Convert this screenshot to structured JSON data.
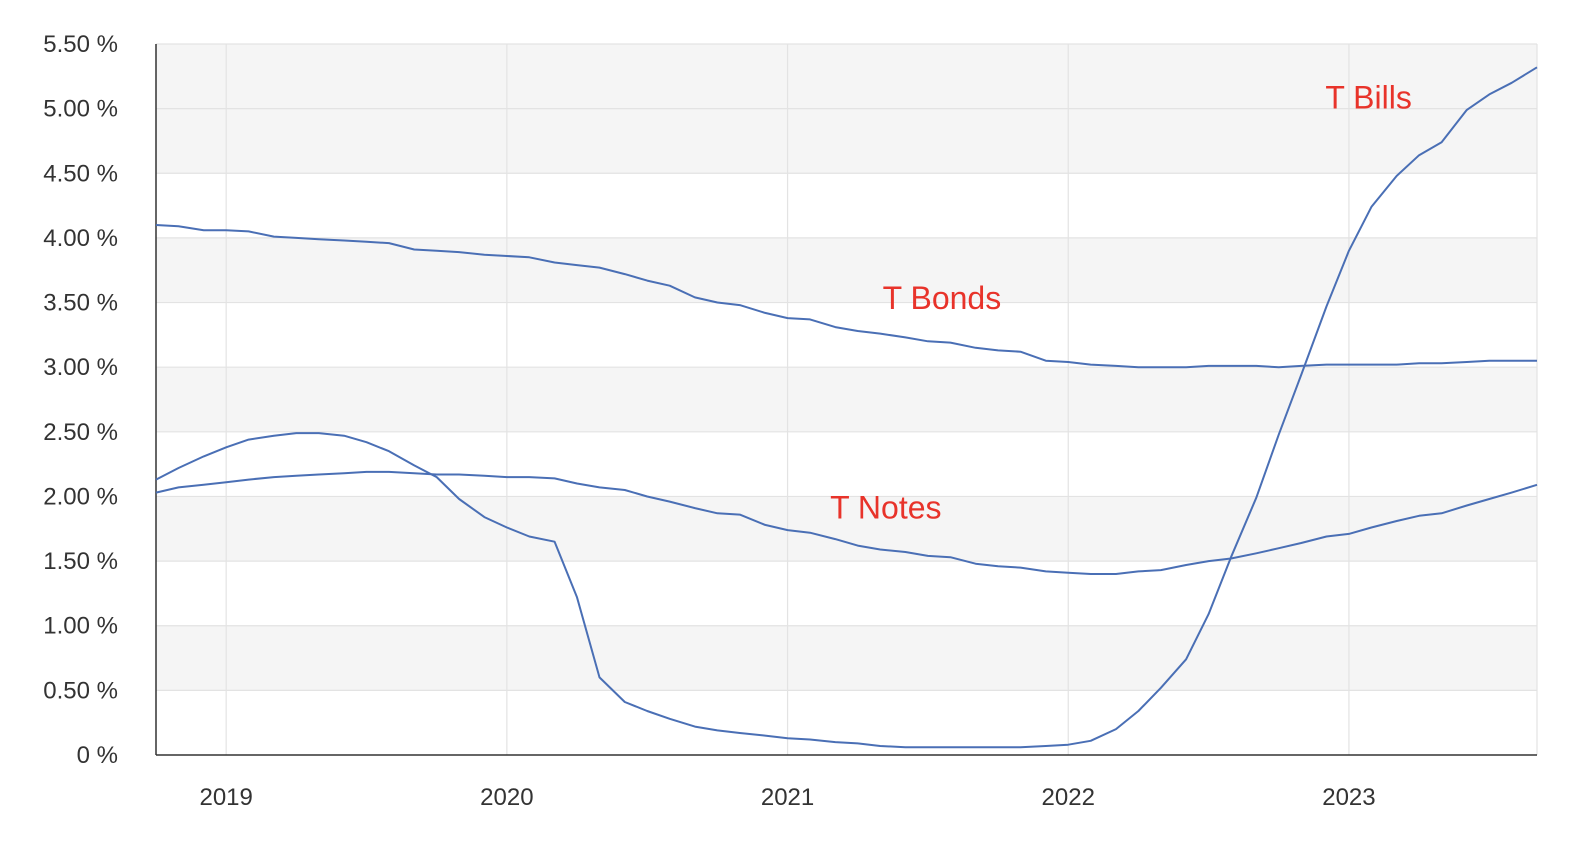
{
  "chart_data": {
    "type": "line",
    "x_unit": "year",
    "xlim": [
      2018.75,
      2023.67
    ],
    "ylim": [
      0,
      5.5
    ],
    "y_tick_values": [
      0,
      0.5,
      1.0,
      1.5,
      2.0,
      2.5,
      3.0,
      3.5,
      4.0,
      4.5,
      5.0,
      5.5
    ],
    "y_tick_labels": [
      "0 %",
      "0.50 %",
      "1.00 %",
      "1.50 %",
      "2.00 %",
      "2.50 %",
      "3.00 %",
      "3.50 %",
      "4.00 %",
      "4.50 %",
      "5.00 %",
      "5.50 %"
    ],
    "x_tick_values": [
      2019,
      2020,
      2021,
      2022,
      2023
    ],
    "x_tick_labels": [
      "2019",
      "2020",
      "2021",
      "2022",
      "2023"
    ],
    "grid": true,
    "banded_background": true,
    "colors": {
      "line": "#4a6fb5",
      "label": "#e8332a",
      "band": "#f5f5f5",
      "grid": "#e3e3e3",
      "axis": "#333333",
      "tick_text": "#333333"
    },
    "series": [
      {
        "name": "T Bills",
        "points": [
          [
            2018.75,
            2.13
          ],
          [
            2018.83,
            2.22
          ],
          [
            2018.92,
            2.31
          ],
          [
            2019.0,
            2.38
          ],
          [
            2019.08,
            2.44
          ],
          [
            2019.17,
            2.47
          ],
          [
            2019.25,
            2.49
          ],
          [
            2019.33,
            2.49
          ],
          [
            2019.42,
            2.47
          ],
          [
            2019.5,
            2.42
          ],
          [
            2019.58,
            2.35
          ],
          [
            2019.67,
            2.24
          ],
          [
            2019.75,
            2.15
          ],
          [
            2019.83,
            1.98
          ],
          [
            2019.92,
            1.84
          ],
          [
            2020.0,
            1.76
          ],
          [
            2020.08,
            1.69
          ],
          [
            2020.17,
            1.65
          ],
          [
            2020.25,
            1.22
          ],
          [
            2020.33,
            0.6
          ],
          [
            2020.42,
            0.41
          ],
          [
            2020.5,
            0.34
          ],
          [
            2020.58,
            0.28
          ],
          [
            2020.67,
            0.22
          ],
          [
            2020.75,
            0.19
          ],
          [
            2020.83,
            0.17
          ],
          [
            2020.92,
            0.15
          ],
          [
            2021.0,
            0.13
          ],
          [
            2021.08,
            0.12
          ],
          [
            2021.17,
            0.1
          ],
          [
            2021.25,
            0.09
          ],
          [
            2021.33,
            0.07
          ],
          [
            2021.42,
            0.06
          ],
          [
            2021.5,
            0.06
          ],
          [
            2021.58,
            0.06
          ],
          [
            2021.67,
            0.06
          ],
          [
            2021.75,
            0.06
          ],
          [
            2021.83,
            0.06
          ],
          [
            2021.92,
            0.07
          ],
          [
            2022.0,
            0.08
          ],
          [
            2022.08,
            0.11
          ],
          [
            2022.17,
            0.2
          ],
          [
            2022.25,
            0.34
          ],
          [
            2022.33,
            0.52
          ],
          [
            2022.42,
            0.74
          ],
          [
            2022.5,
            1.09
          ],
          [
            2022.58,
            1.53
          ],
          [
            2022.67,
            1.99
          ],
          [
            2022.75,
            2.48
          ],
          [
            2022.83,
            2.94
          ],
          [
            2022.92,
            3.47
          ],
          [
            2023.0,
            3.9
          ],
          [
            2023.08,
            4.24
          ],
          [
            2023.17,
            4.48
          ],
          [
            2023.25,
            4.64
          ],
          [
            2023.33,
            4.74
          ],
          [
            2023.42,
            4.99
          ],
          [
            2023.5,
            5.11
          ],
          [
            2023.58,
            5.2
          ],
          [
            2023.67,
            5.32
          ]
        ]
      },
      {
        "name": "T Notes",
        "points": [
          [
            2018.75,
            2.03
          ],
          [
            2018.83,
            2.07
          ],
          [
            2018.92,
            2.09
          ],
          [
            2019.0,
            2.11
          ],
          [
            2019.08,
            2.13
          ],
          [
            2019.17,
            2.15
          ],
          [
            2019.25,
            2.16
          ],
          [
            2019.33,
            2.17
          ],
          [
            2019.42,
            2.18
          ],
          [
            2019.5,
            2.19
          ],
          [
            2019.58,
            2.19
          ],
          [
            2019.67,
            2.18
          ],
          [
            2019.75,
            2.17
          ],
          [
            2019.83,
            2.17
          ],
          [
            2019.92,
            2.16
          ],
          [
            2020.0,
            2.15
          ],
          [
            2020.08,
            2.15
          ],
          [
            2020.17,
            2.14
          ],
          [
            2020.25,
            2.1
          ],
          [
            2020.33,
            2.07
          ],
          [
            2020.42,
            2.05
          ],
          [
            2020.5,
            2.0
          ],
          [
            2020.58,
            1.96
          ],
          [
            2020.67,
            1.91
          ],
          [
            2020.75,
            1.87
          ],
          [
            2020.83,
            1.86
          ],
          [
            2020.92,
            1.78
          ],
          [
            2021.0,
            1.74
          ],
          [
            2021.08,
            1.72
          ],
          [
            2021.17,
            1.67
          ],
          [
            2021.25,
            1.62
          ],
          [
            2021.33,
            1.59
          ],
          [
            2021.42,
            1.57
          ],
          [
            2021.5,
            1.54
          ],
          [
            2021.58,
            1.53
          ],
          [
            2021.67,
            1.48
          ],
          [
            2021.75,
            1.46
          ],
          [
            2021.83,
            1.45
          ],
          [
            2021.92,
            1.42
          ],
          [
            2022.0,
            1.41
          ],
          [
            2022.08,
            1.4
          ],
          [
            2022.17,
            1.4
          ],
          [
            2022.25,
            1.42
          ],
          [
            2022.33,
            1.43
          ],
          [
            2022.42,
            1.47
          ],
          [
            2022.5,
            1.5
          ],
          [
            2022.58,
            1.52
          ],
          [
            2022.67,
            1.56
          ],
          [
            2022.75,
            1.6
          ],
          [
            2022.83,
            1.64
          ],
          [
            2022.92,
            1.69
          ],
          [
            2023.0,
            1.71
          ],
          [
            2023.08,
            1.76
          ],
          [
            2023.17,
            1.81
          ],
          [
            2023.25,
            1.85
          ],
          [
            2023.33,
            1.87
          ],
          [
            2023.42,
            1.93
          ],
          [
            2023.5,
            1.98
          ],
          [
            2023.58,
            2.03
          ],
          [
            2023.67,
            2.09
          ]
        ]
      },
      {
        "name": "T Bonds",
        "points": [
          [
            2018.75,
            4.1
          ],
          [
            2018.83,
            4.09
          ],
          [
            2018.92,
            4.06
          ],
          [
            2019.0,
            4.06
          ],
          [
            2019.08,
            4.05
          ],
          [
            2019.17,
            4.01
          ],
          [
            2019.25,
            4.0
          ],
          [
            2019.33,
            3.99
          ],
          [
            2019.42,
            3.98
          ],
          [
            2019.5,
            3.97
          ],
          [
            2019.58,
            3.96
          ],
          [
            2019.67,
            3.91
          ],
          [
            2019.75,
            3.9
          ],
          [
            2019.83,
            3.89
          ],
          [
            2019.92,
            3.87
          ],
          [
            2020.0,
            3.86
          ],
          [
            2020.08,
            3.85
          ],
          [
            2020.17,
            3.81
          ],
          [
            2020.25,
            3.79
          ],
          [
            2020.33,
            3.77
          ],
          [
            2020.42,
            3.72
          ],
          [
            2020.5,
            3.67
          ],
          [
            2020.58,
            3.63
          ],
          [
            2020.67,
            3.54
          ],
          [
            2020.75,
            3.5
          ],
          [
            2020.83,
            3.48
          ],
          [
            2020.92,
            3.42
          ],
          [
            2021.0,
            3.38
          ],
          [
            2021.08,
            3.37
          ],
          [
            2021.17,
            3.31
          ],
          [
            2021.25,
            3.28
          ],
          [
            2021.33,
            3.26
          ],
          [
            2021.42,
            3.23
          ],
          [
            2021.5,
            3.2
          ],
          [
            2021.58,
            3.19
          ],
          [
            2021.67,
            3.15
          ],
          [
            2021.75,
            3.13
          ],
          [
            2021.83,
            3.12
          ],
          [
            2021.92,
            3.05
          ],
          [
            2022.0,
            3.04
          ],
          [
            2022.08,
            3.02
          ],
          [
            2022.17,
            3.01
          ],
          [
            2022.25,
            3.0
          ],
          [
            2022.33,
            3.0
          ],
          [
            2022.42,
            3.0
          ],
          [
            2022.5,
            3.01
          ],
          [
            2022.58,
            3.01
          ],
          [
            2022.67,
            3.01
          ],
          [
            2022.75,
            3.0
          ],
          [
            2022.83,
            3.01
          ],
          [
            2022.92,
            3.02
          ],
          [
            2023.0,
            3.02
          ],
          [
            2023.08,
            3.02
          ],
          [
            2023.17,
            3.02
          ],
          [
            2023.25,
            3.03
          ],
          [
            2023.33,
            3.03
          ],
          [
            2023.42,
            3.04
          ],
          [
            2023.5,
            3.05
          ],
          [
            2023.58,
            3.05
          ],
          [
            2023.67,
            3.05
          ]
        ]
      }
    ],
    "annotations": [
      {
        "text": "T Bills",
        "x": 2023.07,
        "y": 5.0
      },
      {
        "text": "T Bonds",
        "x": 2021.55,
        "y": 3.45
      },
      {
        "text": "T Notes",
        "x": 2021.35,
        "y": 1.83
      }
    ]
  }
}
